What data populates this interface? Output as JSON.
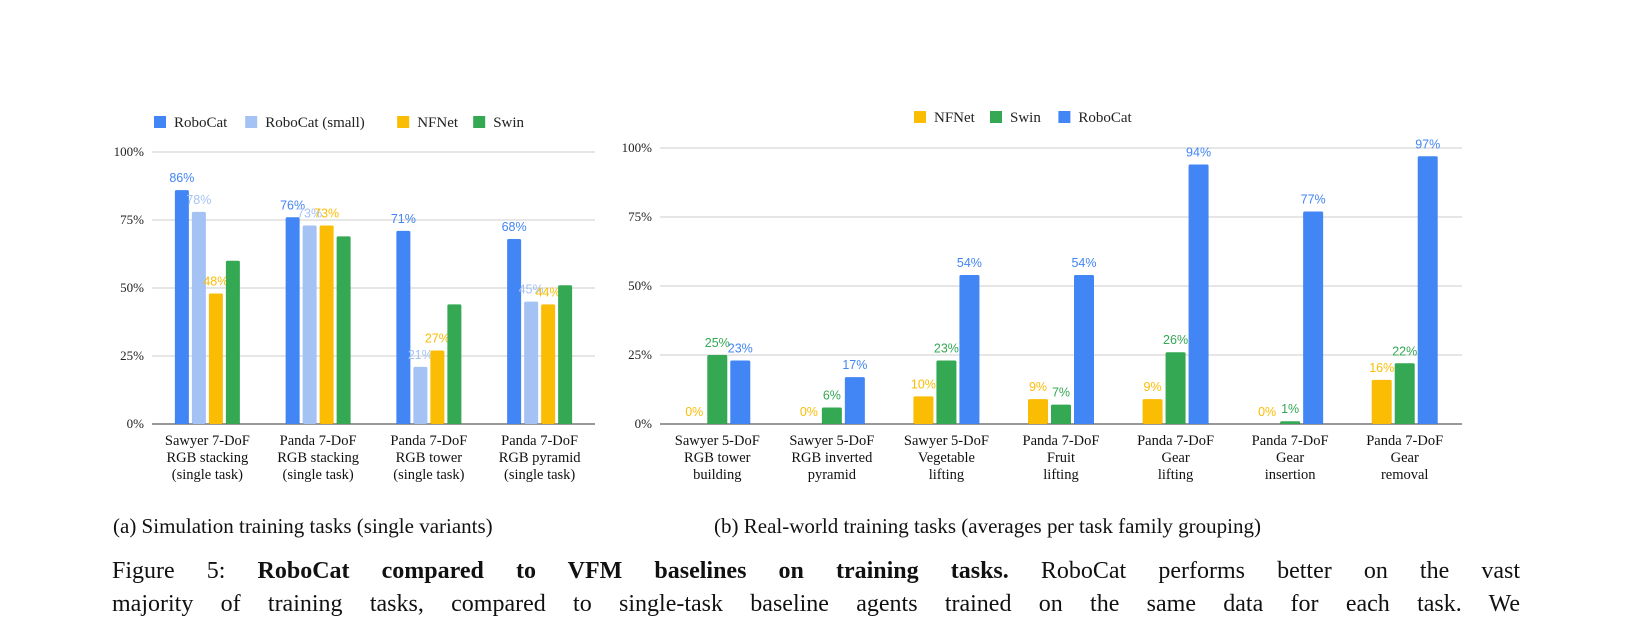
{
  "chart_data": [
    {
      "type": "bar",
      "categories": [
        [
          "Sawyer 7-DoF",
          "RGB stacking",
          "(single task)"
        ],
        [
          "Panda 7-DoF",
          "RGB stacking",
          "(single task)"
        ],
        [
          "Panda 7-DoF",
          "RGB tower",
          "(single task)"
        ],
        [
          "Panda 7-DoF",
          "RGB pyramid",
          "(single task)"
        ]
      ],
      "series": [
        {
          "name": "RoboCat",
          "color": "#4285f4",
          "values": [
            86,
            76,
            71,
            68
          ]
        },
        {
          "name": "RoboCat (small)",
          "color": "#a4c2f4",
          "values": [
            78,
            73,
            21,
            45
          ]
        },
        {
          "name": "NFNet",
          "color": "#fbbc04",
          "values": [
            48,
            73,
            27,
            44
          ]
        },
        {
          "name": "Swin",
          "color": "#34a853",
          "values": [
            60,
            69,
            44,
            51
          ]
        }
      ],
      "data_labels": [
        [
          "86%",
          "76%",
          "71%",
          "68%"
        ],
        [
          "78%",
          "73%",
          "21%",
          "45%"
        ],
        [
          "48%",
          "73%",
          "27%",
          "44%"
        ],
        [
          "",
          "",
          "",
          ""
        ]
      ],
      "yticks": [
        "0%",
        "25%",
        "50%",
        "75%",
        "100%"
      ],
      "ylim": [
        0,
        100
      ],
      "legend": "top",
      "grid": true,
      "caption": "(a) Simulation training tasks (single variants)"
    },
    {
      "type": "bar",
      "categories": [
        [
          "Sawyer 5-DoF",
          "RGB tower",
          "building"
        ],
        [
          "Sawyer 5-DoF",
          "RGB inverted",
          "pyramid"
        ],
        [
          "Sawyer 5-DoF",
          "Vegetable",
          "lifting"
        ],
        [
          "Panda 7-DoF",
          "Fruit",
          "lifting"
        ],
        [
          "Panda 7-DoF",
          "Gear",
          "lifting"
        ],
        [
          "Panda 7-DoF",
          "Gear",
          "insertion"
        ],
        [
          "Panda 7-DoF",
          "Gear",
          "removal"
        ]
      ],
      "series": [
        {
          "name": "NFNet",
          "color": "#fbbc04",
          "values": [
            0,
            0,
            10,
            9,
            9,
            0,
            16
          ]
        },
        {
          "name": "Swin",
          "color": "#34a853",
          "values": [
            25,
            6,
            23,
            7,
            26,
            1,
            22
          ]
        },
        {
          "name": "RoboCat",
          "color": "#4285f4",
          "values": [
            23,
            17,
            54,
            54,
            94,
            77,
            97
          ]
        }
      ],
      "data_labels": [
        [
          "0%",
          "0%",
          "10%",
          "9%",
          "9%",
          "0%",
          "16%"
        ],
        [
          "25%",
          "6%",
          "23%",
          "7%",
          "26%",
          "1%",
          "22%"
        ],
        [
          "23%",
          "17%",
          "54%",
          "54%",
          "94%",
          "77%",
          "97%"
        ]
      ],
      "yticks": [
        "0%",
        "25%",
        "50%",
        "75%",
        "100%"
      ],
      "ylim": [
        0,
        100
      ],
      "legend": "top",
      "grid": true,
      "caption": "(b) Real-world training tasks (averages per task family grouping)"
    }
  ],
  "figure_caption": {
    "label": "Figure 5:",
    "bold": "RoboCat compared to VFM baselines on training tasks.",
    "text_line1": "RoboCat performs better on the vast",
    "text_line2": "majority of training tasks, compared to single-task baseline agents trained on the same data for each task.  We"
  }
}
